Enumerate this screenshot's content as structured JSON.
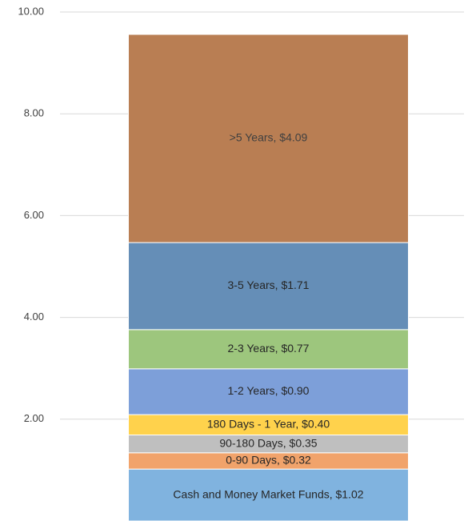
{
  "chart_data": {
    "type": "stacked_bar",
    "categories": [
      null
    ],
    "ylim": [
      0,
      10
    ],
    "yticks": [
      {
        "value": 2,
        "label": "2.00"
      },
      {
        "value": 4,
        "label": "4.00"
      },
      {
        "value": 6,
        "label": "6.00"
      },
      {
        "value": 8,
        "label": "8.00"
      },
      {
        "value": 10,
        "label": "10.00"
      }
    ],
    "grid": true,
    "series": [
      {
        "name": "Cash and Money Market Funds",
        "color": "#80b3df",
        "values": [
          1.02
        ],
        "value_labels": [
          "Cash and Money Market Funds, $1.02"
        ]
      },
      {
        "name": "0-90 Days",
        "color": "#f1a36b",
        "values": [
          0.32
        ],
        "value_labels": [
          "0-90 Days, $0.32"
        ]
      },
      {
        "name": "90-180 Days",
        "color": "#bfbfbf",
        "values": [
          0.35
        ],
        "value_labels": [
          "90-180 Days, $0.35"
        ]
      },
      {
        "name": "180 Days - 1 Year",
        "color": "#ffd24c",
        "values": [
          0.4
        ],
        "value_labels": [
          "180 Days - 1 Year, $0.40"
        ]
      },
      {
        "name": "1-2 Years",
        "color": "#7d9fd9",
        "values": [
          0.9
        ],
        "value_labels": [
          "1-2 Years, $0.90"
        ]
      },
      {
        "name": "2-3 Years",
        "color": "#9dc67d",
        "values": [
          0.77
        ],
        "value_labels": [
          "2-3 Years, $0.77"
        ]
      },
      {
        "name": "3-5 Years",
        "color": "#658eb7",
        "values": [
          1.71
        ],
        "value_labels": [
          "3-5 Years, $1.71"
        ]
      },
      {
        "name": ">5 Years",
        "color": "#b97e53",
        "values": [
          4.09
        ],
        "value_labels": [
          ">5 Years, $4.09"
        ]
      }
    ]
  }
}
